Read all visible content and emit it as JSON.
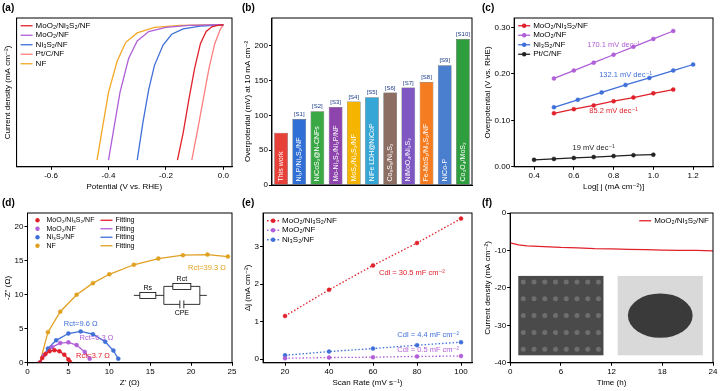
{
  "chart_data": [
    {
      "type": "line",
      "title": "(a)",
      "x_label": "Potential (V vs. RHE)",
      "y_label": "Current density (mA cm⁻²)",
      "xlim": [
        -0.72,
        0.03
      ],
      "xticks": [
        -0.6,
        -0.4,
        -0.2,
        {
          "value": 0,
          "label": "0.0"
        }
      ],
      "ylim": [
        -105,
        5
      ],
      "tick_labels": "x",
      "grid": false,
      "legend": "upper left",
      "series": [
        {
          "name": "MoO₂/Ni₃S₂/NF",
          "color": "#e0202a",
          "line_style": "solid",
          "marker": "none",
          "x": [
            -0.16,
            -0.14,
            -0.12,
            -0.1,
            -0.08,
            -0.06,
            -0.04,
            -0.02,
            0.0
          ],
          "values": [
            -100,
            -80,
            -55,
            -32,
            -14,
            -5,
            -1.5,
            -0.5,
            0
          ]
        },
        {
          "name": "MoO₂/NF",
          "color": "#b05fd6",
          "line_style": "solid",
          "marker": "none",
          "x": [
            -0.4,
            -0.38,
            -0.36,
            -0.33,
            -0.3,
            -0.26,
            -0.2,
            -0.12,
            0.0
          ],
          "values": [
            -100,
            -75,
            -50,
            -25,
            -12,
            -5,
            -2,
            -0.5,
            0
          ]
        },
        {
          "name": "Ni₃S₂/NF",
          "color": "#3f6fd8",
          "line_style": "solid",
          "marker": "none",
          "x": [
            -0.3,
            -0.28,
            -0.26,
            -0.24,
            -0.21,
            -0.18,
            -0.14,
            -0.08,
            0.0
          ],
          "values": [
            -100,
            -72,
            -48,
            -30,
            -15,
            -7,
            -3,
            -1,
            0
          ]
        },
        {
          "name": "Pt/C/NF",
          "color": "#ff7f7f",
          "line_style": "solid",
          "marker": "none",
          "x": [
            -0.11,
            -0.09,
            -0.07,
            -0.05,
            -0.03,
            -0.01,
            0.0
          ],
          "values": [
            -100,
            -78,
            -55,
            -32,
            -14,
            -3,
            0
          ]
        },
        {
          "name": "NF",
          "color": "#f5a623",
          "line_style": "solid",
          "marker": "none",
          "x": [
            -0.44,
            -0.42,
            -0.4,
            -0.37,
            -0.34,
            -0.3,
            -0.24,
            -0.15,
            0.0
          ],
          "values": [
            -100,
            -75,
            -50,
            -27,
            -13,
            -6,
            -2,
            -0.5,
            0
          ]
        }
      ]
    },
    {
      "type": "bar",
      "title": "(b)",
      "y_label": "Overpotential (mV) at 10 mA cm⁻²",
      "categories": [
        "This work",
        "Ni₂P/Ni₃S₂/NF",
        "NiCoS₂@N-CNFs",
        "Mo-Ni₃S₂/Ni₂P/NF",
        "MoS₂/Ni₃S₂/NF",
        "NiFe LDH@NiCoP",
        "Co₉S₈/Ni₃S₂",
        "NiMoO₄/Ni₃S₂",
        "Fe-MoS₂/Ni₃S₂/NF",
        "NiCo-P",
        "Co₃O₄/MoS₂"
      ],
      "refs": [
        null,
        "[S1]",
        "[S2]",
        "[S3]",
        "[S4]",
        "[S5]",
        "[S6]",
        "[S7]",
        "[S8]",
        "[S9]",
        "[S10]"
      ],
      "values": [
        75,
        95,
        106,
        112,
        120,
        126,
        133,
        140,
        148,
        172,
        210
      ],
      "colors": [
        "#e8413a",
        "#2f6fd6",
        "#3aa845",
        "#8e44ad",
        "#f4b400",
        "#36a6d6",
        "#8d6e63",
        "#7e57c2",
        "#f57c20",
        "#4a7fd0",
        "#2e9e3e"
      ],
      "ylim": [
        0,
        240
      ],
      "yticks": [
        0,
        50,
        100,
        150,
        200
      ],
      "tick_labels": "y",
      "grid": false
    },
    {
      "type": "scatter",
      "title": "(c)",
      "x_label": "Log[ j (mA cm⁻²)]",
      "y_label": "Overpotential (V vs. RHE)",
      "xlim": [
        0.3,
        1.3
      ],
      "xticks": [
        0.4,
        0.6,
        0.8,
        {
          "value": 1,
          "label": "1.0"
        },
        1.2
      ],
      "ylim": [
        0,
        0.32
      ],
      "yticks": [
        {
          "value": 0,
          "label": "0.00"
        },
        {
          "value": 0.1,
          "label": "0.10"
        },
        {
          "value": 0.2,
          "label": "0.20"
        },
        {
          "value": 0.3,
          "label": "0.30"
        }
      ],
      "grid": false,
      "legend": "upper left",
      "series": [
        {
          "name": "MoO₂/Ni₃S₂/NF",
          "color": "#e0202a",
          "marker": "circle",
          "line_style": "solid",
          "annotation": "85.2 mV dec⁻¹",
          "x": [
            0.5,
            0.6,
            0.7,
            0.8,
            0.9,
            1.0,
            1.1
          ],
          "values": [
            0.115,
            0.124,
            0.132,
            0.141,
            0.149,
            0.158,
            0.166
          ]
        },
        {
          "name": "MoO₂/NF",
          "color": "#b05fd6",
          "marker": "circle",
          "line_style": "solid",
          "annotation": "170.1 mV dec⁻¹",
          "x": [
            0.5,
            0.6,
            0.7,
            0.8,
            0.9,
            1.0,
            1.1
          ],
          "values": [
            0.19,
            0.207,
            0.224,
            0.241,
            0.258,
            0.275,
            0.292
          ]
        },
        {
          "name": "Ni₃S₂/NF",
          "color": "#3f6fd8",
          "marker": "circle",
          "line_style": "solid",
          "annotation": "132.1 mV dec⁻¹",
          "x": [
            0.5,
            0.62,
            0.74,
            0.86,
            0.98,
            1.1,
            1.2
          ],
          "values": [
            0.128,
            0.144,
            0.16,
            0.176,
            0.191,
            0.207,
            0.22
          ]
        },
        {
          "name": "Pt/C/NF",
          "color": "#222222",
          "marker": "circle",
          "line_style": "solid",
          "annotation": "19 mV dec⁻¹",
          "x": [
            0.4,
            0.5,
            0.6,
            0.7,
            0.8,
            0.9,
            1.0
          ],
          "values": [
            0.015,
            0.017,
            0.019,
            0.021,
            0.023,
            0.025,
            0.026
          ]
        }
      ]
    },
    {
      "type": "scatter",
      "title": "(d)",
      "x_label": "Z' (Ω)",
      "y_label": "-Z'' (Ω)",
      "xlim": [
        0,
        25
      ],
      "xticks": [
        0,
        5,
        10,
        15,
        20,
        25
      ],
      "ylim": [
        0,
        22
      ],
      "yticks": [
        0,
        5,
        10,
        15,
        20
      ],
      "grid": false,
      "legend": "upper left",
      "circuit_labels": [
        "Rs",
        "Rct",
        "CPE"
      ],
      "series": [
        {
          "name": "MoO₂/Ni₃S₂/NF",
          "color": "#e0202a",
          "marker": "circle",
          "line_style": "none",
          "annotation": "Rct=3.7 Ω",
          "x": [
            1.5,
            1.8,
            2.2,
            2.7,
            3.3,
            3.9,
            4.5,
            5.0,
            5.2
          ],
          "values": [
            0,
            0.7,
            1.3,
            1.7,
            1.85,
            1.7,
            1.2,
            0.5,
            0.1
          ]
        },
        {
          "name": "Fitting",
          "color": "#e0202a",
          "marker": "none",
          "line_style": "solid",
          "x": [
            1.5,
            1.8,
            2.2,
            2.7,
            3.3,
            3.9,
            4.5,
            5.0,
            5.2
          ],
          "values": [
            0,
            0.7,
            1.3,
            1.7,
            1.85,
            1.7,
            1.2,
            0.5,
            0.1
          ]
        },
        {
          "name": "MoO₂/NF",
          "color": "#b05fd6",
          "marker": "circle",
          "line_style": "none",
          "annotation": "Rct=6.3 Ω",
          "x": [
            1.5,
            2,
            3,
            4,
            5,
            6,
            7,
            7.6
          ],
          "values": [
            0,
            1.1,
            2.3,
            2.9,
            3.0,
            2.6,
            1.6,
            0.6
          ]
        },
        {
          "name": "Fitting",
          "color": "#b05fd6",
          "marker": "none",
          "line_style": "solid",
          "x": [
            1.5,
            2,
            3,
            4,
            5,
            6,
            7,
            7.6
          ],
          "values": [
            0,
            1.1,
            2.3,
            2.9,
            3.0,
            2.6,
            1.6,
            0.6
          ]
        },
        {
          "name": "Ni₃S₂/NF",
          "color": "#3f6fd8",
          "marker": "circle",
          "line_style": "none",
          "annotation": "Rct=9.6 Ω",
          "x": [
            1.5,
            2.5,
            3.5,
            5,
            6.5,
            8,
            9.5,
            10.5,
            11.1
          ],
          "values": [
            0,
            2.1,
            3.3,
            4.3,
            4.6,
            4.2,
            3.1,
            1.8,
            0.6
          ]
        },
        {
          "name": "Fitting",
          "color": "#3f6fd8",
          "marker": "none",
          "line_style": "solid",
          "x": [
            1.5,
            2.5,
            3.5,
            5,
            6.5,
            8,
            9.5,
            10.5,
            11.1
          ],
          "values": [
            0,
            2.1,
            3.3,
            4.3,
            4.6,
            4.2,
            3.1,
            1.8,
            0.6
          ]
        },
        {
          "name": "NF",
          "color": "#e0a020",
          "marker": "circle",
          "line_style": "none",
          "annotation": "Rct=39.3 Ω",
          "x": [
            1.5,
            2.5,
            4,
            6,
            8,
            10,
            13,
            16,
            19,
            22,
            24.5
          ],
          "values": [
            0,
            4.5,
            7.5,
            10,
            11.7,
            13,
            14.4,
            15.3,
            15.8,
            15.9,
            15.6
          ]
        },
        {
          "name": "Fitting",
          "color": "#e0a020",
          "marker": "none",
          "line_style": "solid",
          "x": [
            1.5,
            2.5,
            4,
            6,
            8,
            10,
            13,
            16,
            19,
            22,
            24.5
          ],
          "values": [
            0,
            4.5,
            7.5,
            10,
            11.7,
            13,
            14.4,
            15.3,
            15.8,
            15.9,
            15.6
          ]
        }
      ]
    },
    {
      "type": "scatter",
      "title": "(e)",
      "x_label": "Scan Rate (mV s⁻¹)",
      "y_label": "Δj (mA cm⁻²)",
      "xlim": [
        10,
        105
      ],
      "xticks": [
        20,
        40,
        60,
        80,
        100
      ],
      "ylim": [
        -0.1,
        3.9
      ],
      "yticks": [
        0,
        1,
        2,
        3
      ],
      "grid": false,
      "legend": "upper left",
      "series": [
        {
          "name": "MoO₂/Ni₃S₂/NF",
          "color": "#e0202a",
          "marker": "circle",
          "line_style": "dotted",
          "annotation": "Cdl = 30.5 mF cm⁻²",
          "x": [
            20,
            40,
            60,
            80,
            100
          ],
          "values": [
            1.15,
            1.85,
            2.5,
            3.1,
            3.75
          ]
        },
        {
          "name": "MoO₂/NF",
          "color": "#b05fd6",
          "marker": "circle",
          "line_style": "dotted",
          "annotation": "Cdl = 0.5 mF cm⁻²",
          "x": [
            20,
            40,
            60,
            80,
            100
          ],
          "values": [
            0.02,
            0.04,
            0.05,
            0.07,
            0.08
          ]
        },
        {
          "name": "Ni₃S₂/NF",
          "color": "#3f6fd8",
          "marker": "circle",
          "line_style": "dotted",
          "annotation": "Cdl = 4.4 mF cm⁻²",
          "x": [
            20,
            40,
            60,
            80,
            100
          ],
          "values": [
            0.1,
            0.2,
            0.28,
            0.37,
            0.45
          ]
        }
      ]
    },
    {
      "type": "line",
      "title": "(f)",
      "x_label": "Time (h)",
      "y_label": "Current density (mA cm⁻²)",
      "xlim": [
        0,
        24
      ],
      "xticks": [
        0,
        6,
        12,
        18,
        24
      ],
      "ylim": [
        -40,
        0
      ],
      "yticks": [
        -40,
        -30,
        -20,
        -10,
        0
      ],
      "grid": false,
      "legend": "upper right",
      "series": [
        {
          "name": "MoO₂/Ni₃S₂/NF",
          "color": "#e0202a",
          "line_style": "solid",
          "marker": "none",
          "x": [
            0,
            1,
            2,
            4,
            6,
            8,
            10,
            12,
            14,
            16,
            18,
            20,
            22,
            24
          ],
          "values": [
            -8,
            -8.5,
            -8.8,
            -9,
            -9.2,
            -9.3,
            -9.5,
            -9.6,
            -9.7,
            -9.8,
            -9.9,
            -10,
            -10,
            -10.1
          ]
        }
      ]
    }
  ]
}
